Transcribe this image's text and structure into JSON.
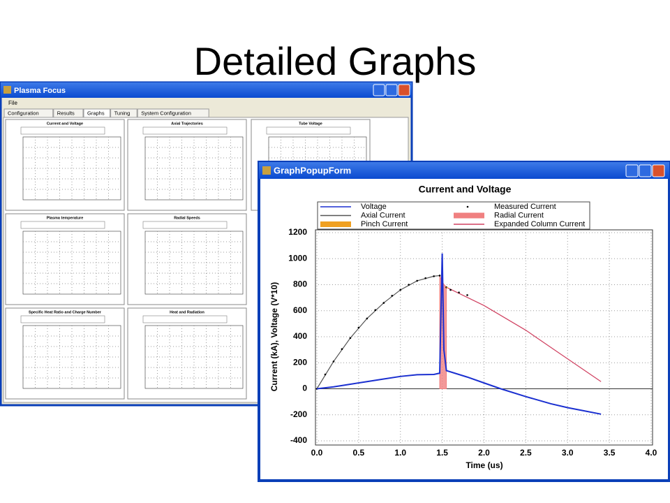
{
  "slide_title": "Detailed Graphs",
  "main_window": {
    "title": "Plasma Focus",
    "menu": [
      "File"
    ],
    "tabs": [
      "Configuration",
      "Results",
      "Graphs",
      "Tuning",
      "System Configuration"
    ],
    "graphs": [
      "Current and Voltage",
      "Axial Trajectories",
      "Tube Voltage",
      "Plasma temperature",
      "Radial Speeds",
      "Specific Heat Ratio and Charge Number",
      "Heat and Radiation"
    ]
  },
  "popup_window": {
    "title": "GraphPopupForm"
  },
  "chart_data": {
    "type": "line",
    "title": "Current and Voltage",
    "x_label": "Time (us)",
    "y_label": "Current (kA), Voltage (V*10)",
    "xlim": [
      0,
      4
    ],
    "ylim": [
      -400,
      1200
    ],
    "xticks": [
      {
        "value": 0,
        "label": "0.0"
      },
      0.5,
      {
        "value": 1,
        "label": "1.0"
      },
      1.5,
      {
        "value": 2,
        "label": "2.0"
      },
      2.5,
      {
        "value": 3,
        "label": "3.0"
      },
      3.5,
      {
        "value": 4,
        "label": "4.0"
      }
    ],
    "yticks": [
      -400,
      -200,
      0,
      200,
      400,
      600,
      800,
      1000,
      1200
    ],
    "grid": true,
    "series": [
      {
        "name": "Voltage",
        "color": "#1a2fd0",
        "style": "line",
        "x": [
          0,
          0.2,
          0.4,
          0.6,
          0.8,
          1.0,
          1.2,
          1.4,
          1.47,
          1.5,
          1.52,
          1.55,
          1.8,
          2.0,
          2.2,
          2.5,
          2.8,
          3.0,
          3.2,
          3.4
        ],
        "values": [
          0,
          15,
          35,
          55,
          75,
          95,
          108,
          110,
          120,
          1040,
          300,
          140,
          90,
          45,
          0,
          -60,
          -115,
          -145,
          -170,
          -195
        ]
      },
      {
        "name": "Measured Current",
        "color": "#000000",
        "style": "dots",
        "x": [
          0,
          0.1,
          0.2,
          0.3,
          0.4,
          0.5,
          0.6,
          0.7,
          0.8,
          0.9,
          1.0,
          1.1,
          1.2,
          1.3,
          1.4,
          1.47,
          1.55,
          1.6,
          1.7,
          1.8
        ],
        "values": [
          0,
          110,
          210,
          305,
          390,
          470,
          540,
          605,
          660,
          715,
          760,
          800,
          830,
          850,
          865,
          870,
          780,
          760,
          740,
          720
        ]
      },
      {
        "name": "Axial Current",
        "color": "#555555",
        "style": "line",
        "x": [
          0,
          0.2,
          0.4,
          0.6,
          0.8,
          1.0,
          1.2,
          1.4,
          1.47
        ],
        "values": [
          0,
          210,
          390,
          540,
          660,
          760,
          830,
          865,
          870
        ]
      },
      {
        "name": "Radial Current",
        "color": "#f08080",
        "style": "area",
        "x": [
          1.47,
          1.5,
          1.55
        ],
        "values": [
          870,
          820,
          780
        ]
      },
      {
        "name": "Pinch Current",
        "color": "#f0a020",
        "style": "line",
        "x": [
          1.55,
          1.57
        ],
        "values": [
          780,
          775
        ]
      },
      {
        "name": "Expanded Column Current",
        "color": "#d04060",
        "style": "line",
        "x": [
          1.55,
          2.0,
          2.5,
          3.0,
          3.4
        ],
        "values": [
          780,
          640,
          450,
          230,
          55
        ]
      }
    ]
  }
}
